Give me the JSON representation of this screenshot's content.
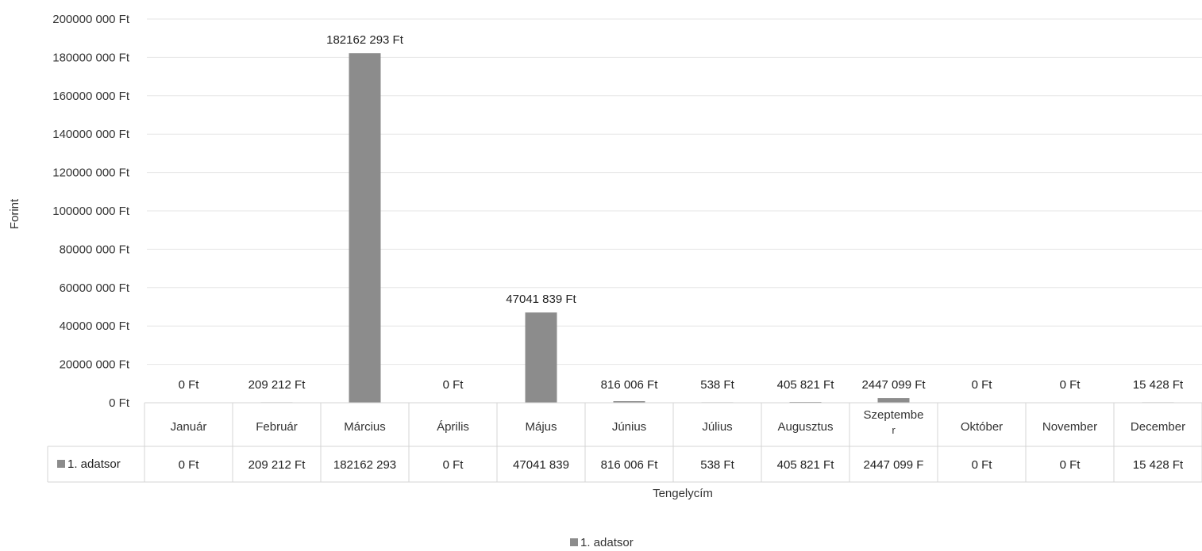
{
  "chart_data": {
    "type": "bar",
    "categories": [
      "Január",
      "Február",
      "Március",
      "Április",
      "Május",
      "Június",
      "Július",
      "Augusztus",
      "Szeptember",
      "Október",
      "November",
      "December"
    ],
    "category_display": [
      "Január",
      "Február",
      "Március",
      "Április",
      "Május",
      "Június",
      "Július",
      "Augusztus",
      "Szeptembe r",
      "Október",
      "November",
      "December"
    ],
    "series": [
      {
        "name": "1. adatsor",
        "values": [
          0,
          209212,
          182162293,
          0,
          47041839,
          816006,
          538,
          405821,
          2447099,
          0,
          0,
          15428
        ],
        "data_labels": [
          "0 Ft",
          "209 212 Ft",
          "182162 293 Ft",
          "0 Ft",
          "47041 839 Ft",
          "816 006 Ft",
          "538 Ft",
          "405 821 Ft",
          "2447 099 Ft",
          "0 Ft",
          "0 Ft",
          "15 428 Ft"
        ],
        "table_cells": [
          "0 Ft",
          "209 212 Ft",
          "182162 293",
          "0 Ft",
          "47041 839 ",
          "816 006 Ft",
          "538 Ft",
          "405 821 Ft",
          "2447 099 F",
          "0 Ft",
          "0 Ft",
          "15 428 Ft"
        ]
      }
    ],
    "ylim": [
      0,
      200000000
    ],
    "yticks": [
      0,
      20000000,
      40000000,
      60000000,
      80000000,
      100000000,
      120000000,
      140000000,
      160000000,
      180000000,
      200000000
    ],
    "ytick_labels": [
      "0 Ft",
      "20000 000 Ft",
      "40000 000 Ft",
      "60000 000 Ft",
      "80000 000 Ft",
      "100000 000 Ft",
      "120000 000 Ft",
      "140000 000 Ft",
      "160000 000 Ft",
      "180000 000 Ft",
      "200000 000 Ft"
    ],
    "ylabel": "Forint",
    "xlabel": "Tengelycím",
    "grid": true,
    "legend": {
      "position": "bottom",
      "entries": [
        "1. adatsor"
      ]
    },
    "data_table": true,
    "bar_color": "#8c8c8c",
    "grid_color": "#e6e6e6",
    "table_line_color": "#d4d4d4"
  }
}
